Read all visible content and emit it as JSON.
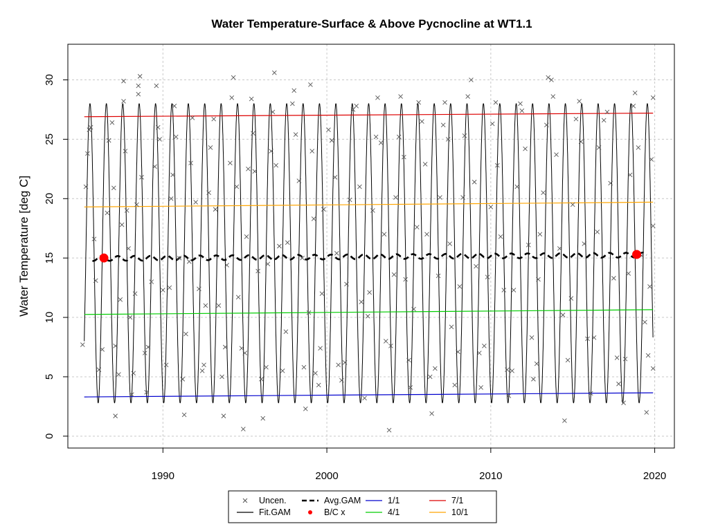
{
  "chart_data": {
    "type": "line",
    "title": "Water Temperature-Surface & Above Pycnocline at WT1.1",
    "xlabel": "",
    "ylabel": "Water Temperature [deg C]",
    "xlim": [
      1984.2,
      2021.2
    ],
    "ylim": [
      -1.0,
      33.0
    ],
    "x_ticks": [
      1990,
      2000,
      2010,
      2020
    ],
    "x_tick_labels": [
      "1990",
      "2000",
      "2010",
      "2020"
    ],
    "y_ticks": [
      0,
      5,
      10,
      15,
      20,
      25,
      30
    ],
    "y_tick_labels": [
      "0",
      "5",
      "10",
      "15",
      "20",
      "25",
      "30"
    ],
    "grid": true,
    "legend_position": "bottom",
    "colors": {
      "uncensored": "#555555",
      "fit_gam": "#000000",
      "avg_gam": "#000000",
      "bc_x": "#ff0000",
      "jan1": "#0000cd",
      "apr1": "#00cd00",
      "jul1": "#dd0000",
      "oct1": "#ffa500"
    },
    "legend": [
      "Uncen.",
      "Fit.GAM",
      "Avg.GAM",
      "B/C x",
      "1/1",
      "4/1",
      "7/1",
      "10/1"
    ],
    "fit_gam_summary": {
      "x_range": [
        1985.2,
        2019.9
      ],
      "min_approx": 2.8,
      "max_approx": 28.0,
      "cycle_years": 1
    },
    "avg_gam": {
      "x_range": [
        1985.7,
        2019.5
      ],
      "mean": 15.1,
      "amplitude": 0.2
    },
    "bc_x_points": [
      {
        "x": 1986.4,
        "y": 15.0
      },
      {
        "x": 2018.9,
        "y": 15.3
      }
    ],
    "series": [
      {
        "name": "1/1",
        "x": [
          1985.2,
          2019.9
        ],
        "y": [
          3.3,
          3.65
        ]
      },
      {
        "name": "4/1",
        "x": [
          1985.2,
          2019.9
        ],
        "y": [
          10.25,
          10.65
        ]
      },
      {
        "name": "7/1",
        "x": [
          1985.2,
          2019.9
        ],
        "y": [
          26.9,
          27.2
        ]
      },
      {
        "name": "10/1",
        "x": [
          1985.2,
          2019.9
        ],
        "y": [
          19.3,
          19.7
        ]
      }
    ],
    "uncensored_points": [
      [
        1985.1,
        7.7
      ],
      [
        1985.3,
        21.0
      ],
      [
        1985.4,
        23.8
      ],
      [
        1985.5,
        25.8
      ],
      [
        1985.6,
        26.0
      ],
      [
        1985.8,
        16.6
      ],
      [
        1985.9,
        13.1
      ],
      [
        1986.1,
        5.6
      ],
      [
        1986.3,
        7.3
      ],
      [
        1986.6,
        18.8
      ],
      [
        1986.7,
        24.9
      ],
      [
        1986.9,
        26.4
      ],
      [
        1987.0,
        20.9
      ],
      [
        1987.1,
        7.6
      ],
      [
        1987.1,
        1.7
      ],
      [
        1987.3,
        5.2
      ],
      [
        1987.4,
        11.5
      ],
      [
        1987.5,
        17.8
      ],
      [
        1987.6,
        29.9
      ],
      [
        1987.6,
        28.2
      ],
      [
        1987.7,
        24.0
      ],
      [
        1987.8,
        19.0
      ],
      [
        1987.9,
        15.8
      ],
      [
        1988.0,
        10.0
      ],
      [
        1988.1,
        3.5
      ],
      [
        1988.2,
        5.3
      ],
      [
        1988.3,
        12.0
      ],
      [
        1988.4,
        19.5
      ],
      [
        1988.5,
        29.5
      ],
      [
        1988.5,
        28.8
      ],
      [
        1988.6,
        30.3
      ],
      [
        1988.7,
        21.8
      ],
      [
        1988.9,
        7.0
      ],
      [
        1989.0,
        3.7
      ],
      [
        1989.1,
        7.5
      ],
      [
        1989.3,
        13.0
      ],
      [
        1989.5,
        22.7
      ],
      [
        1989.6,
        29.5
      ],
      [
        1989.7,
        26.0
      ],
      [
        1989.8,
        25.0
      ],
      [
        1990.0,
        12.3
      ],
      [
        1990.2,
        6.0
      ],
      [
        1990.4,
        12.5
      ],
      [
        1990.5,
        20.0
      ],
      [
        1990.6,
        22.0
      ],
      [
        1990.7,
        27.8
      ],
      [
        1990.8,
        25.2
      ],
      [
        1991.0,
        15.0
      ],
      [
        1991.2,
        4.8
      ],
      [
        1991.3,
        1.8
      ],
      [
        1991.4,
        8.6
      ],
      [
        1991.6,
        14.7
      ],
      [
        1991.7,
        23.0
      ],
      [
        1991.8,
        26.8
      ],
      [
        1992.0,
        19.7
      ],
      [
        1992.2,
        12.4
      ],
      [
        1992.4,
        5.5
      ],
      [
        1992.5,
        6.0
      ],
      [
        1992.6,
        11.0
      ],
      [
        1992.8,
        20.5
      ],
      [
        1992.9,
        24.3
      ],
      [
        1993.1,
        26.7
      ],
      [
        1993.2,
        19.1
      ],
      [
        1993.4,
        11.0
      ],
      [
        1993.6,
        5.0
      ],
      [
        1993.7,
        1.7
      ],
      [
        1993.8,
        7.5
      ],
      [
        1993.9,
        14.4
      ],
      [
        1994.1,
        23.0
      ],
      [
        1994.2,
        28.5
      ],
      [
        1994.3,
        30.2
      ],
      [
        1994.5,
        21.0
      ],
      [
        1994.6,
        11.7
      ],
      [
        1994.8,
        7.4
      ],
      [
        1994.9,
        0.6
      ],
      [
        1995.0,
        7.0
      ],
      [
        1995.1,
        16.8
      ],
      [
        1995.2,
        22.5
      ],
      [
        1995.4,
        28.4
      ],
      [
        1995.5,
        25.5
      ],
      [
        1995.6,
        22.3
      ],
      [
        1995.8,
        13.9
      ],
      [
        1996.0,
        4.8
      ],
      [
        1996.1,
        1.5
      ],
      [
        1996.3,
        5.8
      ],
      [
        1996.4,
        14.5
      ],
      [
        1996.6,
        24.0
      ],
      [
        1996.7,
        27.3
      ],
      [
        1996.8,
        30.6
      ],
      [
        1996.9,
        22.8
      ],
      [
        1997.1,
        16.0
      ],
      [
        1997.3,
        5.5
      ],
      [
        1997.5,
        8.8
      ],
      [
        1997.6,
        16.3
      ],
      [
        1997.9,
        28.0
      ],
      [
        1998.0,
        29.1
      ],
      [
        1998.1,
        25.4
      ],
      [
        1998.3,
        21.5
      ],
      [
        1998.5,
        15.0
      ],
      [
        1998.6,
        5.8
      ],
      [
        1998.7,
        2.3
      ],
      [
        1998.9,
        10.4
      ],
      [
        1999.0,
        29.6
      ],
      [
        1999.1,
        24.0
      ],
      [
        1999.2,
        18.3
      ],
      [
        1999.3,
        5.3
      ],
      [
        1999.5,
        4.3
      ],
      [
        1999.6,
        7.4
      ],
      [
        1999.7,
        12.0
      ],
      [
        1999.8,
        19.1
      ],
      [
        2000.1,
        25.8
      ],
      [
        2000.3,
        24.9
      ],
      [
        2000.5,
        21.8
      ],
      [
        2000.6,
        15.4
      ],
      [
        2000.7,
        6.0
      ],
      [
        2000.9,
        4.7
      ],
      [
        2001.1,
        6.2
      ],
      [
        2001.2,
        12.8
      ],
      [
        2001.4,
        19.9
      ],
      [
        2001.6,
        27.5
      ],
      [
        2001.8,
        27.8
      ],
      [
        2002.0,
        21.0
      ],
      [
        2002.1,
        11.3
      ],
      [
        2002.3,
        3.2
      ],
      [
        2002.5,
        10.1
      ],
      [
        2002.6,
        12.1
      ],
      [
        2002.8,
        19.0
      ],
      [
        2003.0,
        25.2
      ],
      [
        2003.1,
        28.5
      ],
      [
        2003.3,
        24.7
      ],
      [
        2003.5,
        17.0
      ],
      [
        2003.6,
        8.0
      ],
      [
        2003.8,
        0.5
      ],
      [
        2003.9,
        7.6
      ],
      [
        2004.1,
        13.6
      ],
      [
        2004.2,
        20.1
      ],
      [
        2004.4,
        25.2
      ],
      [
        2004.5,
        28.6
      ],
      [
        2004.7,
        23.5
      ],
      [
        2004.8,
        13.2
      ],
      [
        2005.0,
        6.4
      ],
      [
        2005.1,
        4.1
      ],
      [
        2005.3,
        10.7
      ],
      [
        2005.5,
        17.6
      ],
      [
        2005.6,
        28.1
      ],
      [
        2005.8,
        26.5
      ],
      [
        2006.0,
        22.9
      ],
      [
        2006.1,
        17.0
      ],
      [
        2006.3,
        5.0
      ],
      [
        2006.4,
        1.9
      ],
      [
        2006.6,
        5.7
      ],
      [
        2006.8,
        13.5
      ],
      [
        2006.9,
        20.1
      ],
      [
        2007.1,
        26.2
      ],
      [
        2007.2,
        28.1
      ],
      [
        2007.4,
        25.0
      ],
      [
        2007.5,
        16.2
      ],
      [
        2007.6,
        9.2
      ],
      [
        2007.8,
        4.3
      ],
      [
        2008.0,
        7.1
      ],
      [
        2008.1,
        12.6
      ],
      [
        2008.3,
        20.1
      ],
      [
        2008.4,
        25.3
      ],
      [
        2008.6,
        28.6
      ],
      [
        2008.8,
        30.0
      ],
      [
        2009.0,
        21.4
      ],
      [
        2009.1,
        14.3
      ],
      [
        2009.3,
        7.0
      ],
      [
        2009.4,
        4.1
      ],
      [
        2009.6,
        7.6
      ],
      [
        2009.8,
        13.4
      ],
      [
        2010.0,
        19.3
      ],
      [
        2010.1,
        26.3
      ],
      [
        2010.3,
        28.1
      ],
      [
        2010.4,
        22.8
      ],
      [
        2010.6,
        16.8
      ],
      [
        2010.8,
        12.3
      ],
      [
        2011.0,
        5.6
      ],
      [
        2011.1,
        3.4
      ],
      [
        2011.3,
        5.5
      ],
      [
        2011.4,
        12.3
      ],
      [
        2011.6,
        21.0
      ],
      [
        2011.8,
        28.0
      ],
      [
        2011.9,
        27.4
      ],
      [
        2012.1,
        24.2
      ],
      [
        2012.3,
        16.1
      ],
      [
        2012.5,
        8.3
      ],
      [
        2012.6,
        4.8
      ],
      [
        2012.8,
        6.1
      ],
      [
        2012.9,
        13.2
      ],
      [
        2013.0,
        17.0
      ],
      [
        2013.2,
        20.5
      ],
      [
        2013.4,
        26.2
      ],
      [
        2013.5,
        30.2
      ],
      [
        2013.7,
        30.0
      ],
      [
        2013.8,
        28.6
      ],
      [
        2014.0,
        23.7
      ],
      [
        2014.2,
        15.8
      ],
      [
        2014.4,
        10.2
      ],
      [
        2014.5,
        1.3
      ],
      [
        2014.7,
        6.4
      ],
      [
        2014.9,
        11.6
      ],
      [
        2015.0,
        19.5
      ],
      [
        2015.2,
        26.7
      ],
      [
        2015.4,
        28.2
      ],
      [
        2015.5,
        24.8
      ],
      [
        2015.7,
        16.2
      ],
      [
        2015.9,
        8.2
      ],
      [
        2016.1,
        3.6
      ],
      [
        2016.3,
        8.3
      ],
      [
        2016.5,
        17.2
      ],
      [
        2016.6,
        24.3
      ],
      [
        2016.9,
        26.6
      ],
      [
        2017.1,
        27.3
      ],
      [
        2017.3,
        21.3
      ],
      [
        2017.5,
        13.3
      ],
      [
        2017.7,
        6.6
      ],
      [
        2017.8,
        4.4
      ],
      [
        2018.1,
        2.8
      ],
      [
        2018.2,
        6.5
      ],
      [
        2018.4,
        13.7
      ],
      [
        2018.5,
        22.0
      ],
      [
        2018.7,
        27.8
      ],
      [
        2018.8,
        28.9
      ],
      [
        2019.0,
        24.3
      ],
      [
        2019.2,
        15.2
      ],
      [
        2019.4,
        9.6
      ],
      [
        2019.5,
        2.0
      ],
      [
        2019.6,
        6.8
      ],
      [
        2019.7,
        12.6
      ],
      [
        2019.8,
        23.3
      ],
      [
        2019.9,
        28.5
      ],
      [
        2019.9,
        17.7
      ],
      [
        2019.9,
        5.7
      ]
    ]
  }
}
